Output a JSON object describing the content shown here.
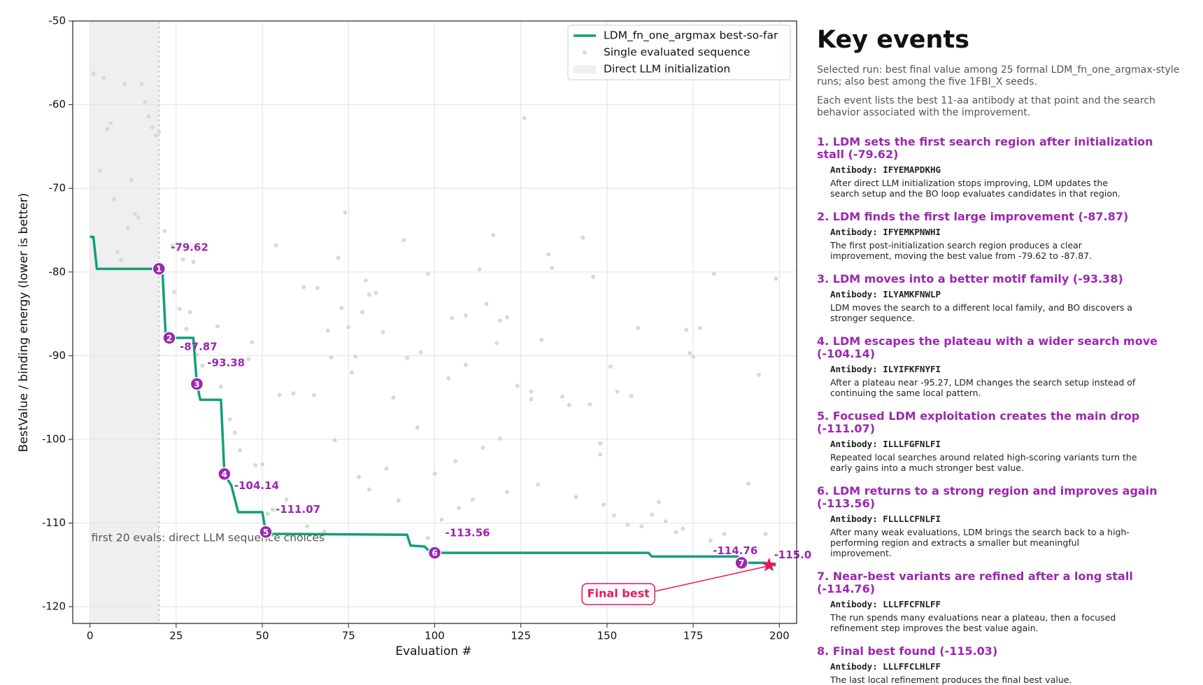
{
  "chart_data": {
    "type": "line",
    "xlabel": "Evaluation #",
    "ylabel": "BestValue / binding energy (lower is better)",
    "xlim": [
      -5,
      205
    ],
    "ylim": [
      -122,
      -50
    ],
    "xticks": [
      0,
      25,
      50,
      75,
      100,
      125,
      150,
      175,
      200
    ],
    "yticks": [
      -50,
      -60,
      -70,
      -80,
      -90,
      -100,
      -110,
      -120
    ],
    "grid": true,
    "legend": "upper right",
    "init_span": [
      0,
      20
    ],
    "init_note": "first 20 evals: direct LLM sequence choices",
    "final_note": "Final best",
    "best": {
      "name": "LDM_fn_one_argmax best-so-far",
      "color": "#129e7c",
      "x": [
        0,
        1,
        2,
        20,
        21,
        22,
        30,
        31,
        32,
        38,
        39,
        41,
        43,
        50,
        51,
        53,
        92,
        93,
        97,
        99,
        162,
        163,
        188,
        189,
        196,
        197,
        199
      ],
      "values": [
        -75.8,
        -75.8,
        -79.62,
        -79.62,
        -79.62,
        -87.87,
        -87.87,
        -93.38,
        -95.27,
        -95.27,
        -104.14,
        -105.5,
        -108.7,
        -108.7,
        -111.07,
        -111.3,
        -111.4,
        -112.7,
        -112.8,
        -113.56,
        -113.56,
        -114.0,
        -114.0,
        -114.76,
        -114.76,
        -115.03,
        -115.03
      ]
    },
    "samples": {
      "name": "Single evaluated sequence",
      "color": "#d9d9d9",
      "x": [
        1,
        4,
        5,
        6,
        3,
        7,
        10,
        12,
        11,
        13,
        14,
        15,
        16,
        17,
        18,
        19,
        20,
        8,
        9,
        21.7,
        24,
        27,
        30,
        24.5,
        26,
        29,
        28,
        37,
        34,
        31,
        32.6,
        38,
        40.6,
        42,
        46,
        47,
        43.5,
        48,
        50,
        54,
        55,
        59,
        62,
        66,
        65,
        69,
        70,
        71,
        72,
        73,
        74,
        75,
        76,
        77,
        80,
        81,
        83,
        79,
        85,
        88,
        91,
        92,
        96,
        98,
        95,
        100,
        106,
        109,
        105,
        109,
        104,
        113,
        115,
        117,
        119,
        121,
        118,
        114,
        119,
        126,
        124,
        128,
        128,
        131,
        137,
        139,
        133,
        134,
        143,
        146,
        145,
        148,
        148,
        151,
        153,
        157,
        159,
        173,
        174,
        175,
        177,
        181,
        194,
        199,
        191,
        165,
        167,
        163,
        170,
        172,
        180,
        184,
        196,
        160,
        156,
        152,
        149,
        141,
        130,
        121,
        111,
        107,
        102,
        98,
        89.5,
        86,
        81,
        78,
        68,
        63,
        60,
        57,
        53,
        51.6
      ],
      "values": [
        -56.3,
        -56.8,
        -62.9,
        -62.2,
        -67.9,
        -71.3,
        -57.5,
        -69.0,
        -74.7,
        -73.1,
        -73.5,
        -57.5,
        -59.7,
        -61.4,
        -62.7,
        -63.7,
        -63.3,
        -77.6,
        -78.6,
        -75.1,
        -76.9,
        -78.5,
        -78.8,
        -82.4,
        -84.4,
        -84.8,
        -86.8,
        -86.5,
        -88.6,
        -89.9,
        -91.2,
        -93.7,
        -97.6,
        -99.2,
        -90.4,
        -88.4,
        -101.3,
        -103.1,
        -103.0,
        -76.8,
        -94.7,
        -94.5,
        -81.8,
        -81.9,
        -94.7,
        -87.0,
        -90.2,
        -100.1,
        -78.3,
        -84.3,
        -72.9,
        -86.6,
        -92.0,
        -90.1,
        -81.0,
        -82.7,
        -82.5,
        -84.8,
        -87.2,
        -95.0,
        -76.2,
        -90.3,
        -89.6,
        -80.2,
        -98.6,
        -104.1,
        -102.6,
        -85.2,
        -85.5,
        -91.1,
        -92.7,
        -79.7,
        -83.8,
        -75.6,
        -85.8,
        -85.4,
        -88.5,
        -101.0,
        -99.9,
        -61.6,
        -93.6,
        -94.3,
        -95.2,
        -88.1,
        -94.9,
        -95.9,
        -77.9,
        -79.5,
        -75.9,
        -80.6,
        -95.8,
        -100.5,
        -101.8,
        -91.3,
        -94.3,
        -94.8,
        -86.7,
        -86.9,
        -89.7,
        -90.1,
        -86.7,
        -80.2,
        -92.3,
        -80.8,
        -105.3,
        -107.5,
        -109.8,
        -109.0,
        -111.1,
        -110.7,
        -112.1,
        -111.3,
        -111.3,
        -110.4,
        -110.2,
        -109.1,
        -107.8,
        -106.9,
        -105.4,
        -106.3,
        -107.2,
        -108.2,
        -109.6,
        -111.8,
        -107.3,
        -103.5,
        -106.0,
        -104.5,
        -111.0,
        -110.4,
        -108.6,
        -107.2,
        -108.4,
        -108.9
      ]
    },
    "init_name": "Direct LLM initialization",
    "events": [
      {
        "n": 1,
        "x": 20,
        "value": -79.62
      },
      {
        "n": 2,
        "x": 23,
        "value": -87.87
      },
      {
        "n": 3,
        "x": 31,
        "value": -93.38
      },
      {
        "n": 4,
        "x": 39,
        "value": -104.14
      },
      {
        "n": 5,
        "x": 51,
        "value": -111.07
      },
      {
        "n": 6,
        "x": 100,
        "value": -113.56
      },
      {
        "n": 7,
        "x": 189,
        "value": -114.76
      },
      {
        "x": 197,
        "value": -115.03
      }
    ]
  },
  "panel": {
    "title": "Key events",
    "intro": [
      "Selected run: best final value among 25 formal LDM_fn_one_argmax-style runs; also best among the five 1FBI_X seeds.",
      "Each event lists the best 11-aa antibody at that point and the search behavior associated with the improvement."
    ],
    "items": [
      {
        "title": "1. LDM sets the first search region after initialization stall (-79.62)",
        "antibody": "Antibody: IFYEMAPDKHG",
        "text": "After direct LLM initialization stops improving, LDM updates the search setup and the BO loop evaluates candidates in that region."
      },
      {
        "title": "2. LDM finds the first large improvement (-87.87)",
        "antibody": "Antibody: IFYEMKPNWHI",
        "text": "The first post-initialization search region produces a clear improvement, moving the best value from -79.62 to -87.87."
      },
      {
        "title": "3. LDM moves into a better motif family (-93.38)",
        "antibody": "Antibody: ILYAMKFNWLP",
        "text": "LDM moves the search to a different local family, and BO discovers a stronger sequence."
      },
      {
        "title": "4. LDM escapes the plateau with a wider search move (-104.14)",
        "antibody": "Antibody: ILYIFKFNYFI",
        "text": "After a plateau near -95.27, LDM changes the search setup instead of continuing the same local pattern."
      },
      {
        "title": "5. Focused LDM exploitation creates the main drop (-111.07)",
        "antibody": "Antibody: ILLLFGFNLFI",
        "text": "Repeated local searches around related high-scoring variants turn the early gains into a much stronger best value."
      },
      {
        "title": "6. LDM returns to a strong region and improves again (-113.56)",
        "antibody": "Antibody: FLLLLCFNLFI",
        "text": "After many weak evaluations, LDM brings the search back to a high-performing region and extracts a smaller but meaningful improvement."
      },
      {
        "title": "7. Near-best variants are refined after a long stall (-114.76)",
        "antibody": "Antibody: LLLFFCFNLFF",
        "text": "The run spends many evaluations near a plateau, then a focused refinement step improves the best value again."
      },
      {
        "title": "8. Final best found (-115.03)",
        "antibody": "Antibody: LLLFFCLHLFF",
        "text": "The last local refinement produces the final best value."
      }
    ]
  }
}
